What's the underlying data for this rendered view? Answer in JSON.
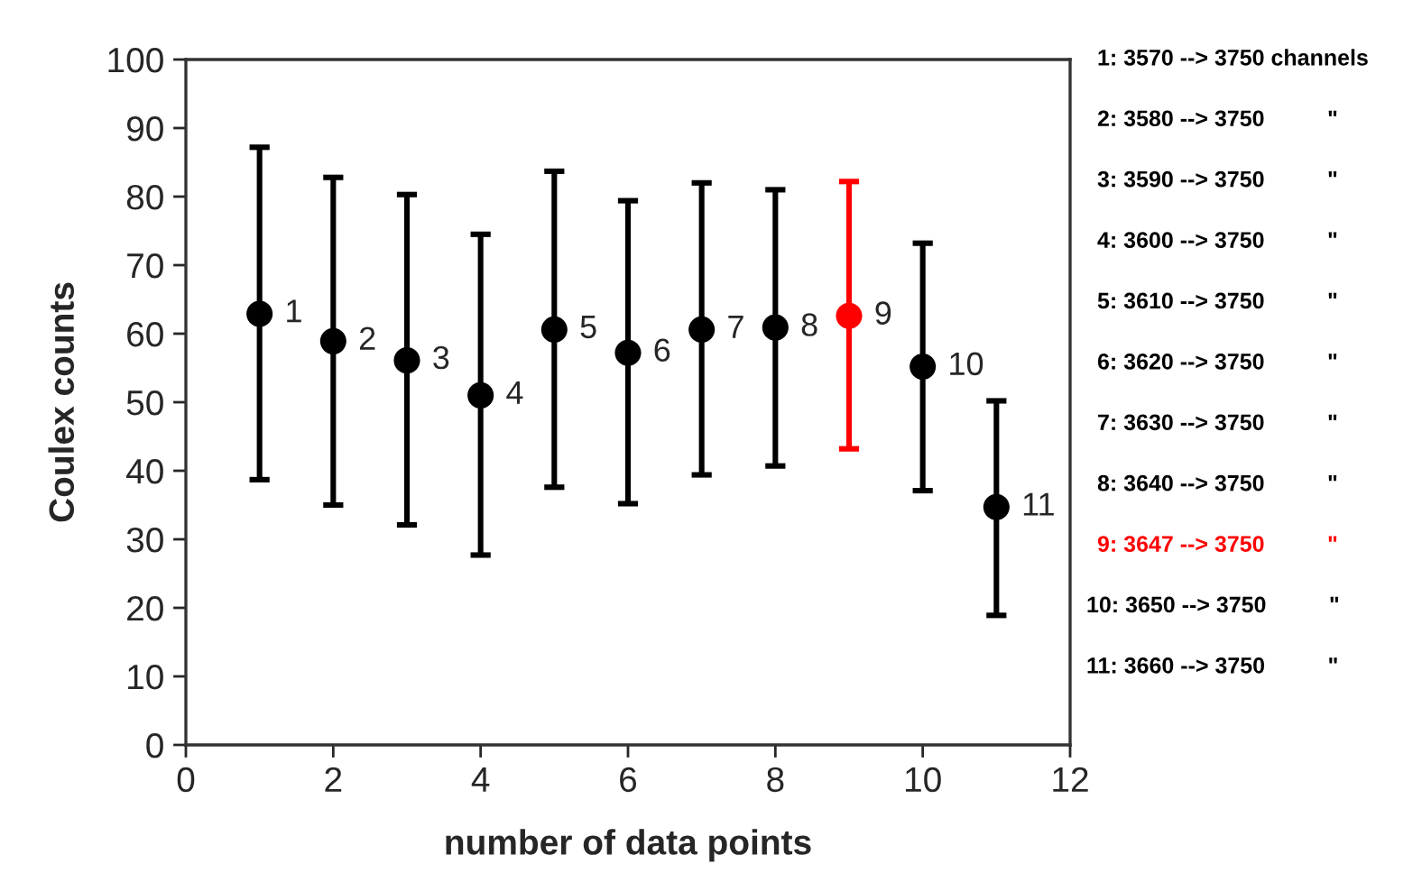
{
  "chart_data": {
    "type": "scatter",
    "xlabel": "number of data points",
    "ylabel": "Coulex counts",
    "x": [
      1,
      2,
      3,
      4,
      5,
      6,
      7,
      8,
      9,
      10,
      11
    ],
    "values": [
      62.9,
      58.9,
      56.1,
      51.0,
      60.6,
      57.2,
      60.6,
      60.9,
      62.6,
      55.2,
      34.7
    ],
    "errors": [
      [
        38.7,
        87.2
      ],
      [
        35.0,
        82.8
      ],
      [
        32.1,
        80.3
      ],
      [
        27.7,
        74.5
      ],
      [
        37.6,
        83.7
      ],
      [
        35.2,
        79.4
      ],
      [
        39.4,
        82.0
      ],
      [
        40.7,
        81.0
      ],
      [
        43.2,
        82.2
      ],
      [
        37.1,
        73.2
      ],
      [
        18.9,
        50.2
      ]
    ],
    "colors": [
      "#000000",
      "#000000",
      "#000000",
      "#000000",
      "#000000",
      "#000000",
      "#000000",
      "#000000",
      "#ff0000",
      "#000000",
      "#000000"
    ],
    "marker": "circle",
    "xlim": [
      0,
      12
    ],
    "xticks": [
      0,
      2,
      4,
      6,
      8,
      10,
      12
    ],
    "ylim": [
      0,
      100
    ],
    "yticks": [
      0,
      10,
      20,
      30,
      40,
      50,
      60,
      70,
      80,
      90,
      100
    ],
    "grid": false,
    "legend": false,
    "annotations": [
      {
        "text": "1",
        "x": 1,
        "y": 62.9
      },
      {
        "text": "2",
        "x": 2,
        "y": 58.9
      },
      {
        "text": "3",
        "x": 3,
        "y": 56.1
      },
      {
        "text": "4",
        "x": 4,
        "y": 51.0
      },
      {
        "text": "5",
        "x": 5,
        "y": 60.6
      },
      {
        "text": "6",
        "x": 6,
        "y": 57.2
      },
      {
        "text": "7",
        "x": 7,
        "y": 60.6
      },
      {
        "text": "8",
        "x": 8,
        "y": 60.9
      },
      {
        "text": "9",
        "x": 9,
        "y": 62.6
      },
      {
        "text": "10",
        "x": 10,
        "y": 55.2
      },
      {
        "text": "11",
        "x": 11,
        "y": 34.7
      },
      "1: 3570 --> 3750 channels",
      "2: 3580 --> 3750          \"",
      "3: 3590 --> 3750          \"",
      "4: 3600 --> 3750          \"",
      "5: 3610 --> 3750          \"",
      "6: 3620 --> 3750          \"",
      "7: 3630 --> 3750          \"",
      "8: 3640 --> 3750          \"",
      "9: 3647 --> 3750          \"",
      "10: 3650 --> 3750          \"",
      "11: 3660 --> 3750          \""
    ]
  }
}
